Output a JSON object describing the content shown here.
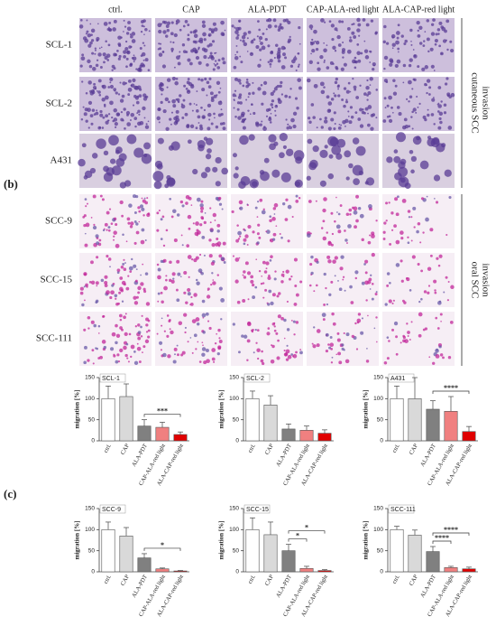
{
  "figure": {
    "columns": [
      "ctrl.",
      "CAP",
      "ALA-PDT",
      "CAP-ALA-red light",
      "ALA-CAP-red light"
    ],
    "rows": [
      "SCL-1",
      "SCL-2",
      "A431",
      "SCC-9",
      "SCC-15",
      "SCC-111"
    ],
    "groups": [
      [
        "cutaneous SCC",
        "invasion"
      ],
      [
        "oral SCC",
        "invasion"
      ]
    ],
    "panel_labels": [
      "(b)",
      "(c)"
    ]
  },
  "chart_data": [
    {
      "type": "bar",
      "title": "SCL-1",
      "y_label": "migration [%]",
      "categories": [
        "ctrl.",
        "CAP",
        "ALA-PDT",
        "CAP-ALA-red light",
        "ALA-CAP-red light"
      ],
      "values": [
        100,
        105,
        35,
        32,
        15
      ],
      "errors": [
        30,
        30,
        15,
        12,
        6
      ],
      "colors": [
        "#ffffff",
        "#d9d9d9",
        "#808080",
        "#f08080",
        "#e00000"
      ],
      "ylim": [
        0,
        150
      ],
      "yticks": [
        0,
        50,
        100,
        150
      ],
      "significance": [
        {
          "label": "***",
          "from": 2,
          "to": 4
        }
      ]
    },
    {
      "type": "bar",
      "title": "SCL-2",
      "y_label": "migration [%]",
      "categories": [
        "ctrl.",
        "CAP",
        "ALA-PDT",
        "CAP-ALA-red light",
        "ALA-CAP-red light"
      ],
      "values": [
        100,
        85,
        28,
        25,
        18
      ],
      "errors": [
        18,
        22,
        12,
        10,
        8
      ],
      "colors": [
        "#ffffff",
        "#d9d9d9",
        "#808080",
        "#f08080",
        "#e00000"
      ],
      "ylim": [
        0,
        150
      ],
      "yticks": [
        0,
        50,
        100,
        150
      ],
      "significance": []
    },
    {
      "type": "bar",
      "title": "A431",
      "y_label": "migration [%]",
      "categories": [
        "ctrl.",
        "CAP",
        "ALA-PDT",
        "CAP-ALA-red light",
        "ALA-CAP-red light"
      ],
      "values": [
        100,
        100,
        75,
        70,
        22
      ],
      "errors": [
        30,
        50,
        20,
        35,
        12
      ],
      "colors": [
        "#ffffff",
        "#d9d9d9",
        "#808080",
        "#f08080",
        "#e00000"
      ],
      "ylim": [
        0,
        150
      ],
      "yticks": [
        0,
        50,
        100,
        150
      ],
      "significance": [
        {
          "label": "****",
          "from": 2,
          "to": 4
        }
      ]
    },
    {
      "type": "bar",
      "title": "SCC-9",
      "y_label": "migration [%]",
      "categories": [
        "ctrl.",
        "CAP",
        "ALA-PDT",
        "CAP-ALA-red light",
        "ALA-CAP-red light"
      ],
      "values": [
        100,
        85,
        33,
        7,
        2
      ],
      "errors": [
        18,
        20,
        10,
        2,
        1
      ],
      "colors": [
        "#ffffff",
        "#d9d9d9",
        "#808080",
        "#f08080",
        "#e00000"
      ],
      "ylim": [
        0,
        150
      ],
      "yticks": [
        0,
        50,
        100,
        150
      ],
      "significance": [
        {
          "label": "*",
          "from": 2,
          "to": 4
        }
      ]
    },
    {
      "type": "bar",
      "title": "SCC-15",
      "y_label": "migration [%]",
      "categories": [
        "ctrl.",
        "CAP",
        "ALA-PDT",
        "CAP-ALA-red light",
        "ALA-CAP-red light"
      ],
      "values": [
        100,
        88,
        50,
        8,
        3
      ],
      "errors": [
        28,
        30,
        15,
        5,
        2
      ],
      "colors": [
        "#ffffff",
        "#d9d9d9",
        "#808080",
        "#f08080",
        "#e00000"
      ],
      "ylim": [
        0,
        150
      ],
      "yticks": [
        0,
        50,
        100,
        150
      ],
      "significance": [
        {
          "label": "*",
          "from": 2,
          "to": 3
        },
        {
          "label": "*",
          "from": 2,
          "to": 4
        }
      ]
    },
    {
      "type": "bar",
      "title": "SCC-111",
      "y_label": "migration [%]",
      "categories": [
        "ctrl.",
        "CAP",
        "ALA-PDT",
        "CAP-ALA-red light",
        "ALA-CAP-red light"
      ],
      "values": [
        100,
        87,
        48,
        10,
        7
      ],
      "errors": [
        8,
        12,
        12,
        3,
        4
      ],
      "colors": [
        "#ffffff",
        "#d9d9d9",
        "#808080",
        "#f08080",
        "#e00000"
      ],
      "ylim": [
        0,
        150
      ],
      "yticks": [
        0,
        50,
        100,
        150
      ],
      "significance": [
        {
          "label": "****",
          "from": 2,
          "to": 3
        },
        {
          "label": "****",
          "from": 2,
          "to": 4
        }
      ]
    }
  ]
}
